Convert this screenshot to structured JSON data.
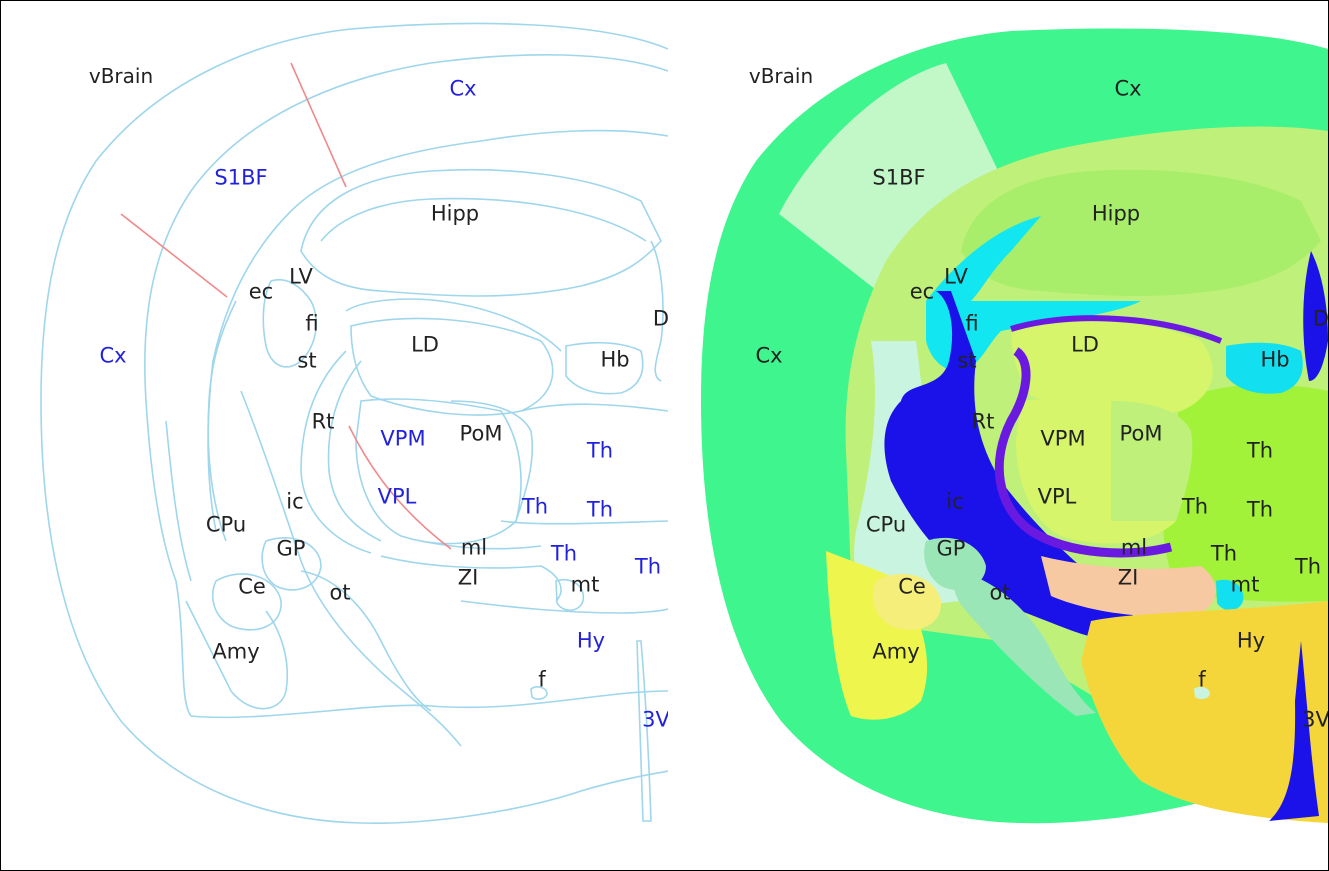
{
  "panels": [
    {
      "title": "vBrain",
      "labels": {
        "cx_top": "Cx",
        "s1bf": "S1BF",
        "hipp": "Hipp",
        "cx_left": "Cx",
        "ec": "ec",
        "lv": "LV",
        "fi": "fi",
        "st": "st",
        "ld": "LD",
        "d": "D",
        "hb": "Hb",
        "rt": "Rt",
        "vpm": "VPM",
        "pom": "PoM",
        "th1": "Th",
        "vpl": "VPL",
        "ic": "ic",
        "cpu": "CPu",
        "th2": "Th",
        "th3": "Th",
        "gp": "GP",
        "ml": "ml",
        "th4": "Th",
        "th5": "Th",
        "ce": "Ce",
        "ot": "ot",
        "zi": "ZI",
        "mt": "mt",
        "amy": "Amy",
        "hy": "Hy",
        "f": "f",
        "v3": "3V"
      }
    },
    {
      "title": "vBrain",
      "labels": {
        "cx_top": "Cx",
        "s1bf": "S1BF",
        "hipp": "Hipp",
        "cx_left": "Cx",
        "ec": "ec",
        "lv": "LV",
        "fi": "fi",
        "st": "st",
        "ld": "LD",
        "d": "D",
        "hb": "Hb",
        "rt": "Rt",
        "vpm": "VPM",
        "pom": "PoM",
        "th1": "Th",
        "vpl": "VPL",
        "ic": "ic",
        "cpu": "CPu",
        "th2": "Th",
        "th3": "Th",
        "gp": "GP",
        "ml": "ml",
        "th4": "Th",
        "th5": "Th",
        "ce": "Ce",
        "ot": "ot",
        "zi": "ZI",
        "mt": "mt",
        "amy": "Amy",
        "hy": "Hy",
        "f": "f",
        "v3": "3V"
      }
    }
  ],
  "colors": {
    "outline": "#9fd6ec",
    "boundary": "#f08a8a",
    "label_dark": "#222222",
    "label_blue": "#2222dd",
    "cortex": "#3ef58e",
    "s1bf": "#c2f7c8",
    "white_matter": "#bff07a",
    "hippocampus": "#a9ee6a",
    "ventricle": "#12e6f0",
    "internal_capsule": "#1a12e8",
    "thalamus": "#a2f23a",
    "lateral_dorsal": "#d6f56a",
    "medial_lemniscus": "#6a1ae0",
    "striatum": "#c9f5e0",
    "globus_pallidus": "#9ae6b6",
    "amygdala": "#eef54c",
    "central_amygdala": "#f5ee7a",
    "zona_incerta": "#f7c9a2",
    "hypothalamus": "#f5d63a",
    "habenula": "#12dff0"
  }
}
